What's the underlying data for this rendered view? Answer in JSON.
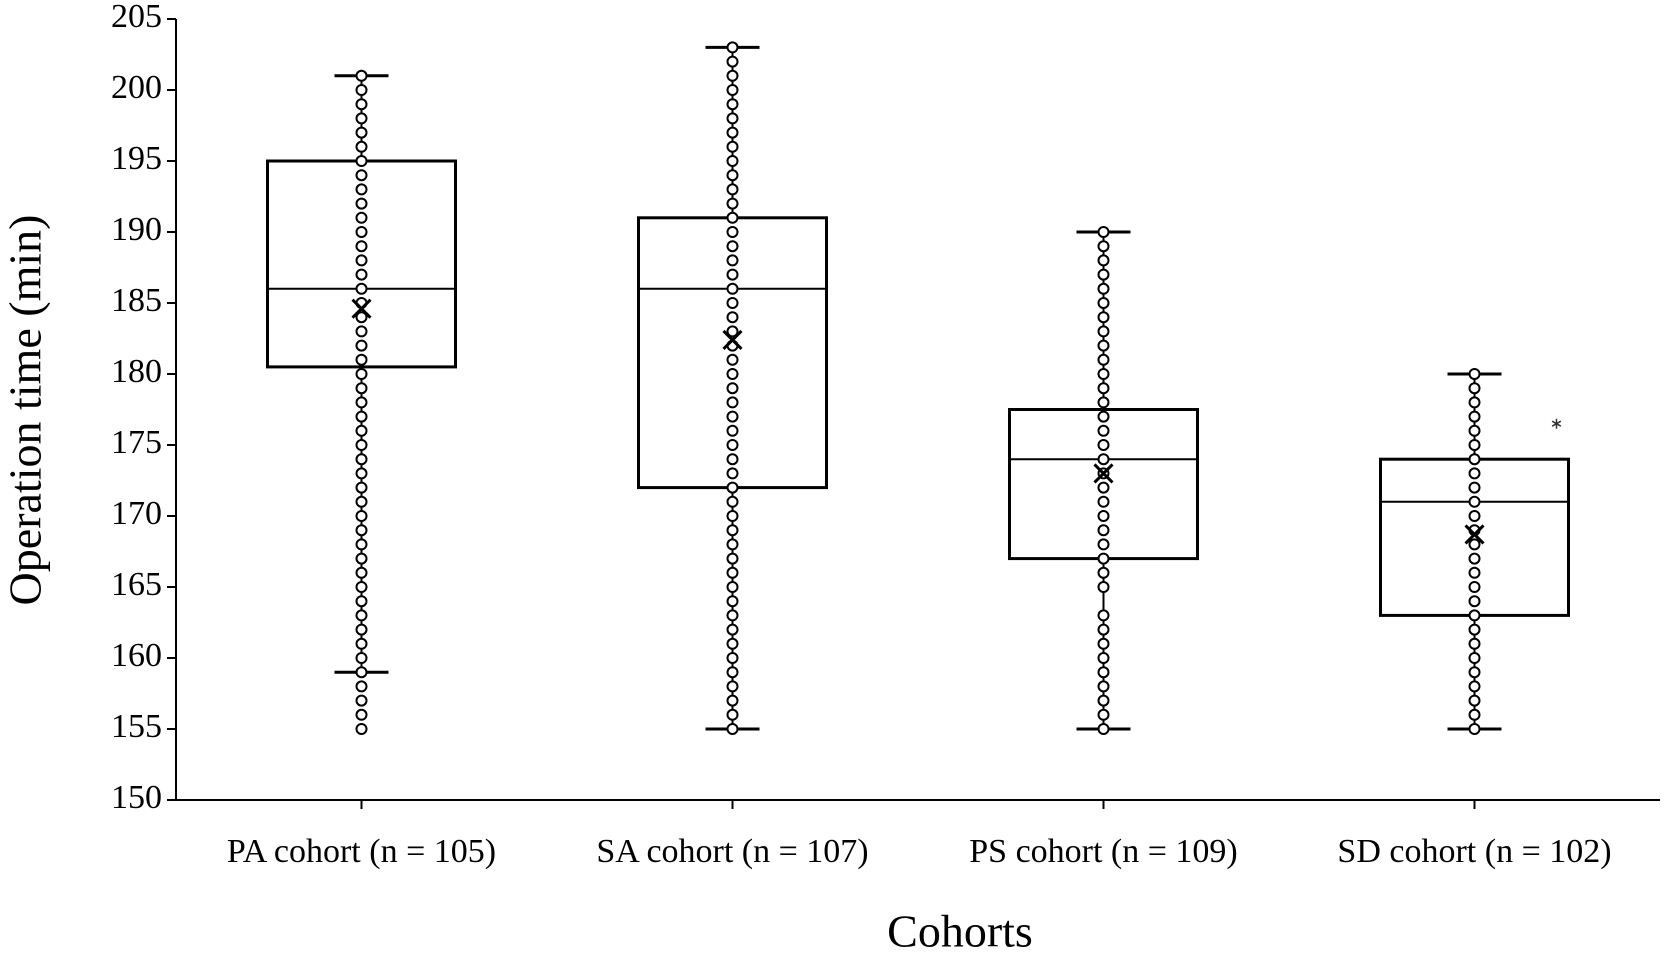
{
  "chart_data": {
    "type": "box",
    "x_label": "Cohorts",
    "y_label": "Operation time (min)",
    "categories": [
      "PA cohort (n = 105)",
      "SA cohort (n = 107)",
      "PS cohort (n = 109)",
      "SD cohort (n = 102)"
    ],
    "color": "#000000",
    "ylim": [
      150,
      205
    ],
    "yticks": [
      150,
      155,
      160,
      165,
      170,
      175,
      180,
      185,
      190,
      195,
      200,
      205
    ],
    "boxes": [
      {
        "whisker_low": 159,
        "q1": 180.5,
        "median": 186,
        "q3": 195,
        "whisker_high": 201,
        "mean": 184.6,
        "points": [
          155,
          156,
          157,
          158,
          159,
          160,
          161,
          162,
          163,
          164,
          165,
          166,
          167,
          168,
          169,
          170,
          171,
          172,
          173,
          174,
          175,
          176,
          177,
          178,
          179,
          180,
          181,
          182,
          183,
          184,
          185,
          186,
          187,
          188,
          189,
          190,
          191,
          192,
          193,
          194,
          195,
          196,
          197,
          198,
          199,
          200,
          201
        ]
      },
      {
        "whisker_low": 155,
        "q1": 172,
        "median": 186,
        "q3": 191,
        "whisker_high": 203,
        "mean": 182.4,
        "points": [
          155,
          156,
          157,
          158,
          159,
          160,
          161,
          162,
          163,
          164,
          165,
          166,
          167,
          168,
          169,
          170,
          171,
          172,
          173,
          174,
          175,
          176,
          177,
          178,
          179,
          180,
          181,
          182,
          183,
          184,
          185,
          186,
          187,
          188,
          189,
          190,
          191,
          192,
          193,
          194,
          195,
          196,
          197,
          198,
          199,
          200,
          201,
          202,
          203
        ]
      },
      {
        "whisker_low": 155,
        "q1": 167,
        "median": 174,
        "q3": 177.5,
        "whisker_high": 190,
        "mean": 173,
        "points": [
          155,
          156,
          157,
          158,
          159,
          160,
          161,
          162,
          163,
          165,
          166,
          167,
          168,
          169,
          170,
          171,
          172,
          173,
          174,
          175,
          176,
          177,
          178,
          179,
          180,
          181,
          182,
          183,
          184,
          185,
          186,
          187,
          188,
          189,
          190
        ]
      },
      {
        "whisker_low": 155,
        "q1": 163,
        "median": 171,
        "q3": 174,
        "whisker_high": 180,
        "mean": 168.7,
        "points": [
          155,
          156,
          157,
          158,
          159,
          160,
          161,
          162,
          163,
          164,
          165,
          166,
          167,
          168,
          169,
          170,
          171,
          172,
          173,
          174,
          175,
          176,
          177,
          178,
          179,
          180
        ],
        "outliers": [
          176.5
        ]
      }
    ]
  }
}
